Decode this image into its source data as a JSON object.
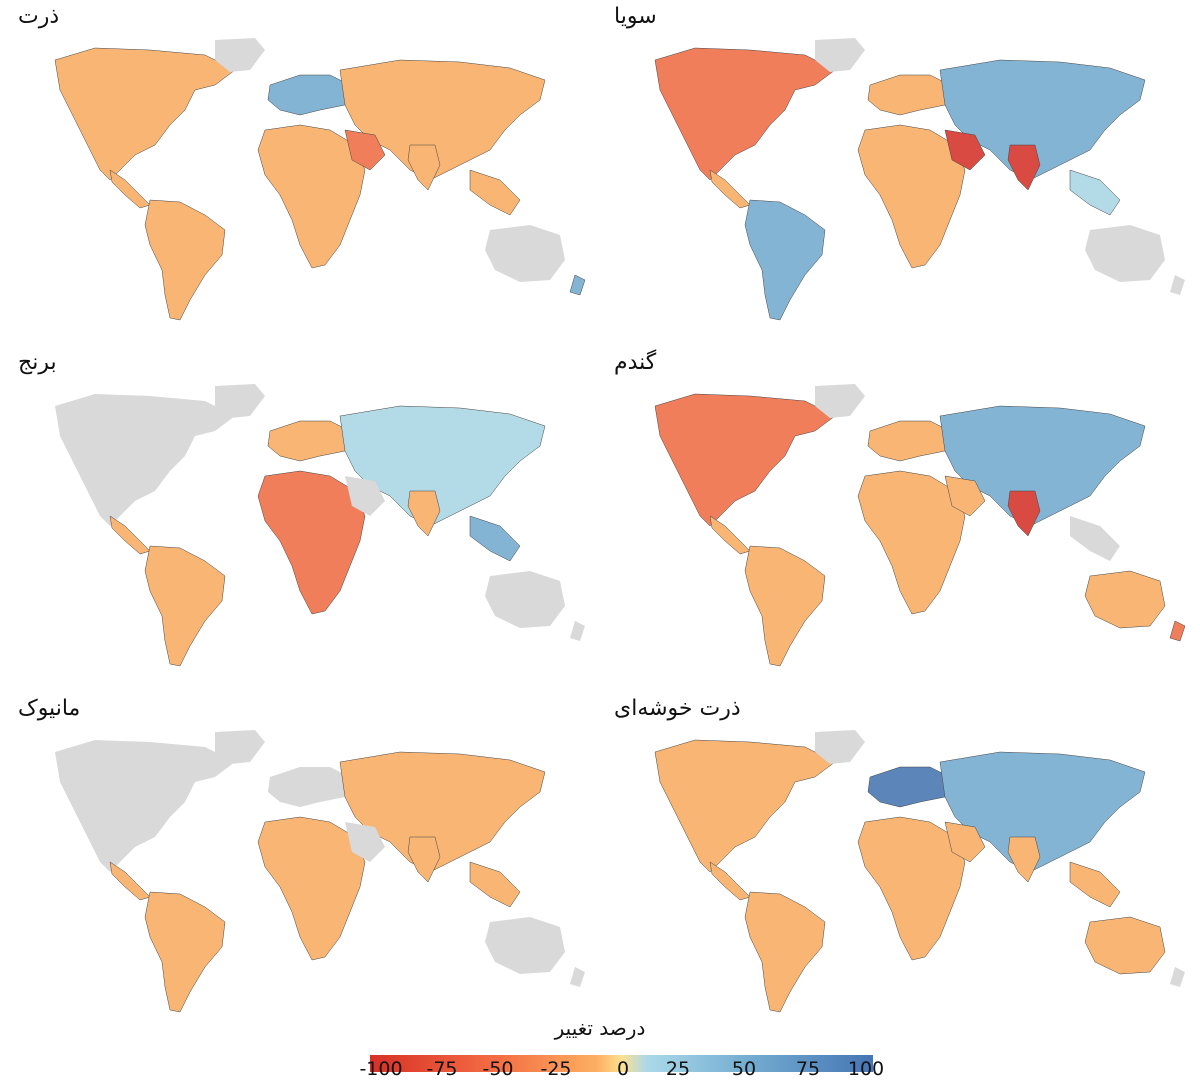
{
  "legend": {
    "title": "درصد تغییر",
    "ticks": [
      "-100",
      "-75",
      "-50",
      "-25",
      "0",
      "25",
      "50",
      "75",
      "100"
    ],
    "colors": {
      "neg": "#d73027",
      "mid_neg": "#f46d43",
      "low_neg": "#fdae61",
      "zero": "#fee090",
      "low_pos": "#abd9e9",
      "mid_pos": "#74add1",
      "pos": "#4575b4"
    }
  },
  "land_color": "#d9d9d9",
  "panels": [
    {
      "title": "ذرت"
    },
    {
      "title": "سویا"
    },
    {
      "title": "برنج"
    },
    {
      "title": "گندم"
    },
    {
      "title": "مانیوک"
    },
    {
      "title": "ذرت خوشه‌ای"
    }
  ]
}
